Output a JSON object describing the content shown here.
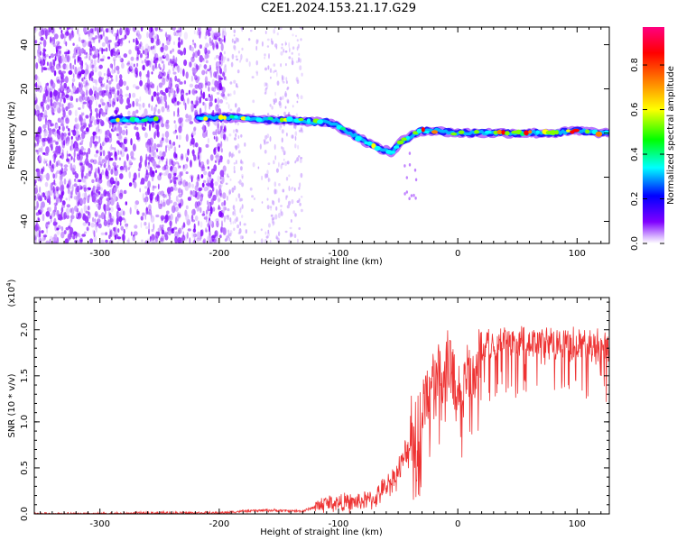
{
  "title": "C2E1.2024.153.21.17.G29",
  "chart_data": [
    {
      "type": "heatmap",
      "xlabel": "Height of straight line (km)",
      "ylabel": "Frequency (Hz)",
      "xlim": [
        -355,
        127
      ],
      "ylim": [
        -50,
        48
      ],
      "xticks": [
        -300,
        -200,
        -100,
        0,
        100
      ],
      "yticks": [
        -40,
        -20,
        0,
        20,
        40
      ],
      "colorbar": {
        "label": "Normalized spectral amplitude",
        "range": [
          0,
          0.97
        ],
        "ticks": [
          0.0,
          0.2,
          0.4,
          0.6,
          0.8
        ],
        "colors": [
          "#ffffff",
          "#c9a0ff",
          "#7f00ff",
          "#0000ff",
          "#00ffff",
          "#00ff00",
          "#ffff00",
          "#ff8000",
          "#ff0000",
          "#ff0080"
        ]
      },
      "ridge": {
        "x": [
          -285,
          -260,
          -215,
          -200,
          -180,
          -160,
          -140,
          -120,
          -110,
          -100,
          -90,
          -80,
          -70,
          -60,
          -55,
          -50,
          -45,
          -40,
          -35,
          -30,
          -20,
          0,
          20,
          40,
          60,
          80,
          100,
          120
        ],
        "y": [
          6,
          6,
          7,
          7,
          7,
          6,
          6,
          5,
          5,
          3,
          0,
          -3,
          -6,
          -8,
          -9,
          -5,
          -3,
          -2,
          0,
          1,
          1,
          0,
          0,
          0,
          0,
          0,
          1,
          0
        ]
      },
      "noise_region_x": [
        -355,
        -195
      ],
      "sparse_region_x": [
        -195,
        -130
      ]
    },
    {
      "type": "line",
      "xlabel": "Height of straight line (km)",
      "ylabel": "SNR (10 * v/v)",
      "multiplier": "(x10",
      "multiplier_exp": "4",
      "multiplier_close": ")",
      "xlim": [
        -355,
        127
      ],
      "ylim": [
        0,
        2.35
      ],
      "xticks": [
        -300,
        -200,
        -100,
        0,
        100
      ],
      "yticks": [
        0.0,
        0.5,
        1.0,
        1.5,
        2.0
      ],
      "series": [
        {
          "color": "#ee3333",
          "x": [
            -355,
            -300,
            -250,
            -200,
            -180,
            -160,
            -130,
            -110,
            -90,
            -70,
            -60,
            -50,
            -45,
            -40,
            -35,
            -30,
            -25,
            -20,
            -15,
            -10,
            0,
            10,
            20,
            30,
            40,
            60,
            80,
            100,
            127
          ],
          "y": [
            0.0,
            0.0,
            0.01,
            0.01,
            0.03,
            0.04,
            0.03,
            0.12,
            0.12,
            0.16,
            0.3,
            0.45,
            0.6,
            0.75,
            0.9,
            1.1,
            1.3,
            1.45,
            1.55,
            1.6,
            1.5,
            1.5,
            1.75,
            1.85,
            1.85,
            1.85,
            1.85,
            1.85,
            1.8
          ]
        }
      ]
    }
  ]
}
